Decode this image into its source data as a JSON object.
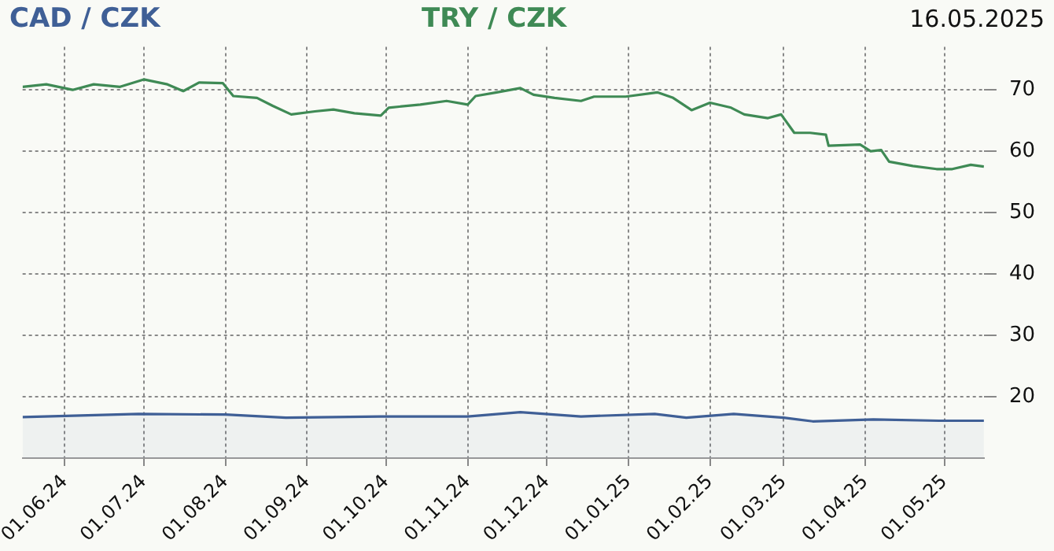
{
  "chart_data": {
    "type": "line",
    "title": "16.05.2025",
    "legend": "top left",
    "grid": true,
    "line_style": "solid",
    "marker": "none",
    "xlim": [
      "2024-05-16",
      "2025-05-16"
    ],
    "xticks": [
      {
        "value": "2024-06-01",
        "label": "01.06.24"
      },
      {
        "value": "2024-07-01",
        "label": "01.07.24"
      },
      {
        "value": "2024-08-01",
        "label": "01.08.24"
      },
      {
        "value": "2024-09-01",
        "label": "01.09.24"
      },
      {
        "value": "2024-10-01",
        "label": "01.10.24"
      },
      {
        "value": "2024-11-01",
        "label": "01.11.24"
      },
      {
        "value": "2024-12-01",
        "label": "01.12.24"
      },
      {
        "value": "2025-01-01",
        "label": "01.01.25"
      },
      {
        "value": "2025-02-01",
        "label": "01.02.25"
      },
      {
        "value": "2025-03-01",
        "label": "01.03.25"
      },
      {
        "value": "2025-04-01",
        "label": "01.04.25"
      },
      {
        "value": "2025-05-01",
        "label": "01.05.25"
      }
    ],
    "ylim": [
      10,
      77
    ],
    "yticks": [
      20,
      30,
      40,
      50,
      60,
      70
    ],
    "series": [
      {
        "name": "CAD / CZK",
        "type": "area",
        "color": "#3f5f96",
        "x": [
          "2024-05-16",
          "2024-06-29",
          "2024-08-01",
          "2024-08-24",
          "2024-09-29",
          "2024-11-01",
          "2024-11-21",
          "2024-12-14",
          "2025-01-11",
          "2025-01-23",
          "2025-02-10",
          "2025-03-01",
          "2025-03-12",
          "2025-04-04",
          "2025-04-29",
          "2025-05-16"
        ],
        "values": [
          16.7,
          17.2,
          17.1,
          16.6,
          16.8,
          16.8,
          17.5,
          16.8,
          17.2,
          16.6,
          17.2,
          16.6,
          16.0,
          16.3,
          16.1,
          16.1
        ]
      },
      {
        "name": "TRY / CZK",
        "type": "line",
        "color": "#3f8a55",
        "x": [
          "2024-05-16",
          "2024-05-25",
          "2024-06-04",
          "2024-06-12",
          "2024-06-22",
          "2024-07-01",
          "2024-07-10",
          "2024-07-16",
          "2024-07-22",
          "2024-07-31",
          "2024-08-04",
          "2024-08-13",
          "2024-08-19",
          "2024-08-26",
          "2024-09-04",
          "2024-09-11",
          "2024-09-19",
          "2024-09-29",
          "2024-10-02",
          "2024-10-14",
          "2024-10-24",
          "2024-11-01",
          "2024-11-04",
          "2024-11-12",
          "2024-11-21",
          "2024-11-26",
          "2024-12-04",
          "2024-12-14",
          "2024-12-19",
          "2024-12-31",
          "2025-01-12",
          "2025-01-18",
          "2025-01-25",
          "2025-02-01",
          "2025-02-09",
          "2025-02-14",
          "2025-02-23",
          "2025-02-28",
          "2025-03-05",
          "2025-03-11",
          "2025-03-17",
          "2025-03-18",
          "2025-03-30",
          "2025-04-03",
          "2025-04-07",
          "2025-04-10",
          "2025-04-19",
          "2025-04-28",
          "2025-05-04",
          "2025-05-11",
          "2025-05-16"
        ],
        "values": [
          70.5,
          70.9,
          70.0,
          70.9,
          70.5,
          71.7,
          70.9,
          69.8,
          71.2,
          71.1,
          69.0,
          68.7,
          67.4,
          66.0,
          66.5,
          66.8,
          66.2,
          65.8,
          67.1,
          67.6,
          68.2,
          67.6,
          69.0,
          69.6,
          70.3,
          69.2,
          68.7,
          68.2,
          68.9,
          68.9,
          69.6,
          68.7,
          66.7,
          67.9,
          67.1,
          66.0,
          65.4,
          66.0,
          63.0,
          63.0,
          62.7,
          60.9,
          61.1,
          60.0,
          60.2,
          58.3,
          57.6,
          57.1,
          57.1,
          57.8,
          57.5
        ]
      }
    ]
  }
}
